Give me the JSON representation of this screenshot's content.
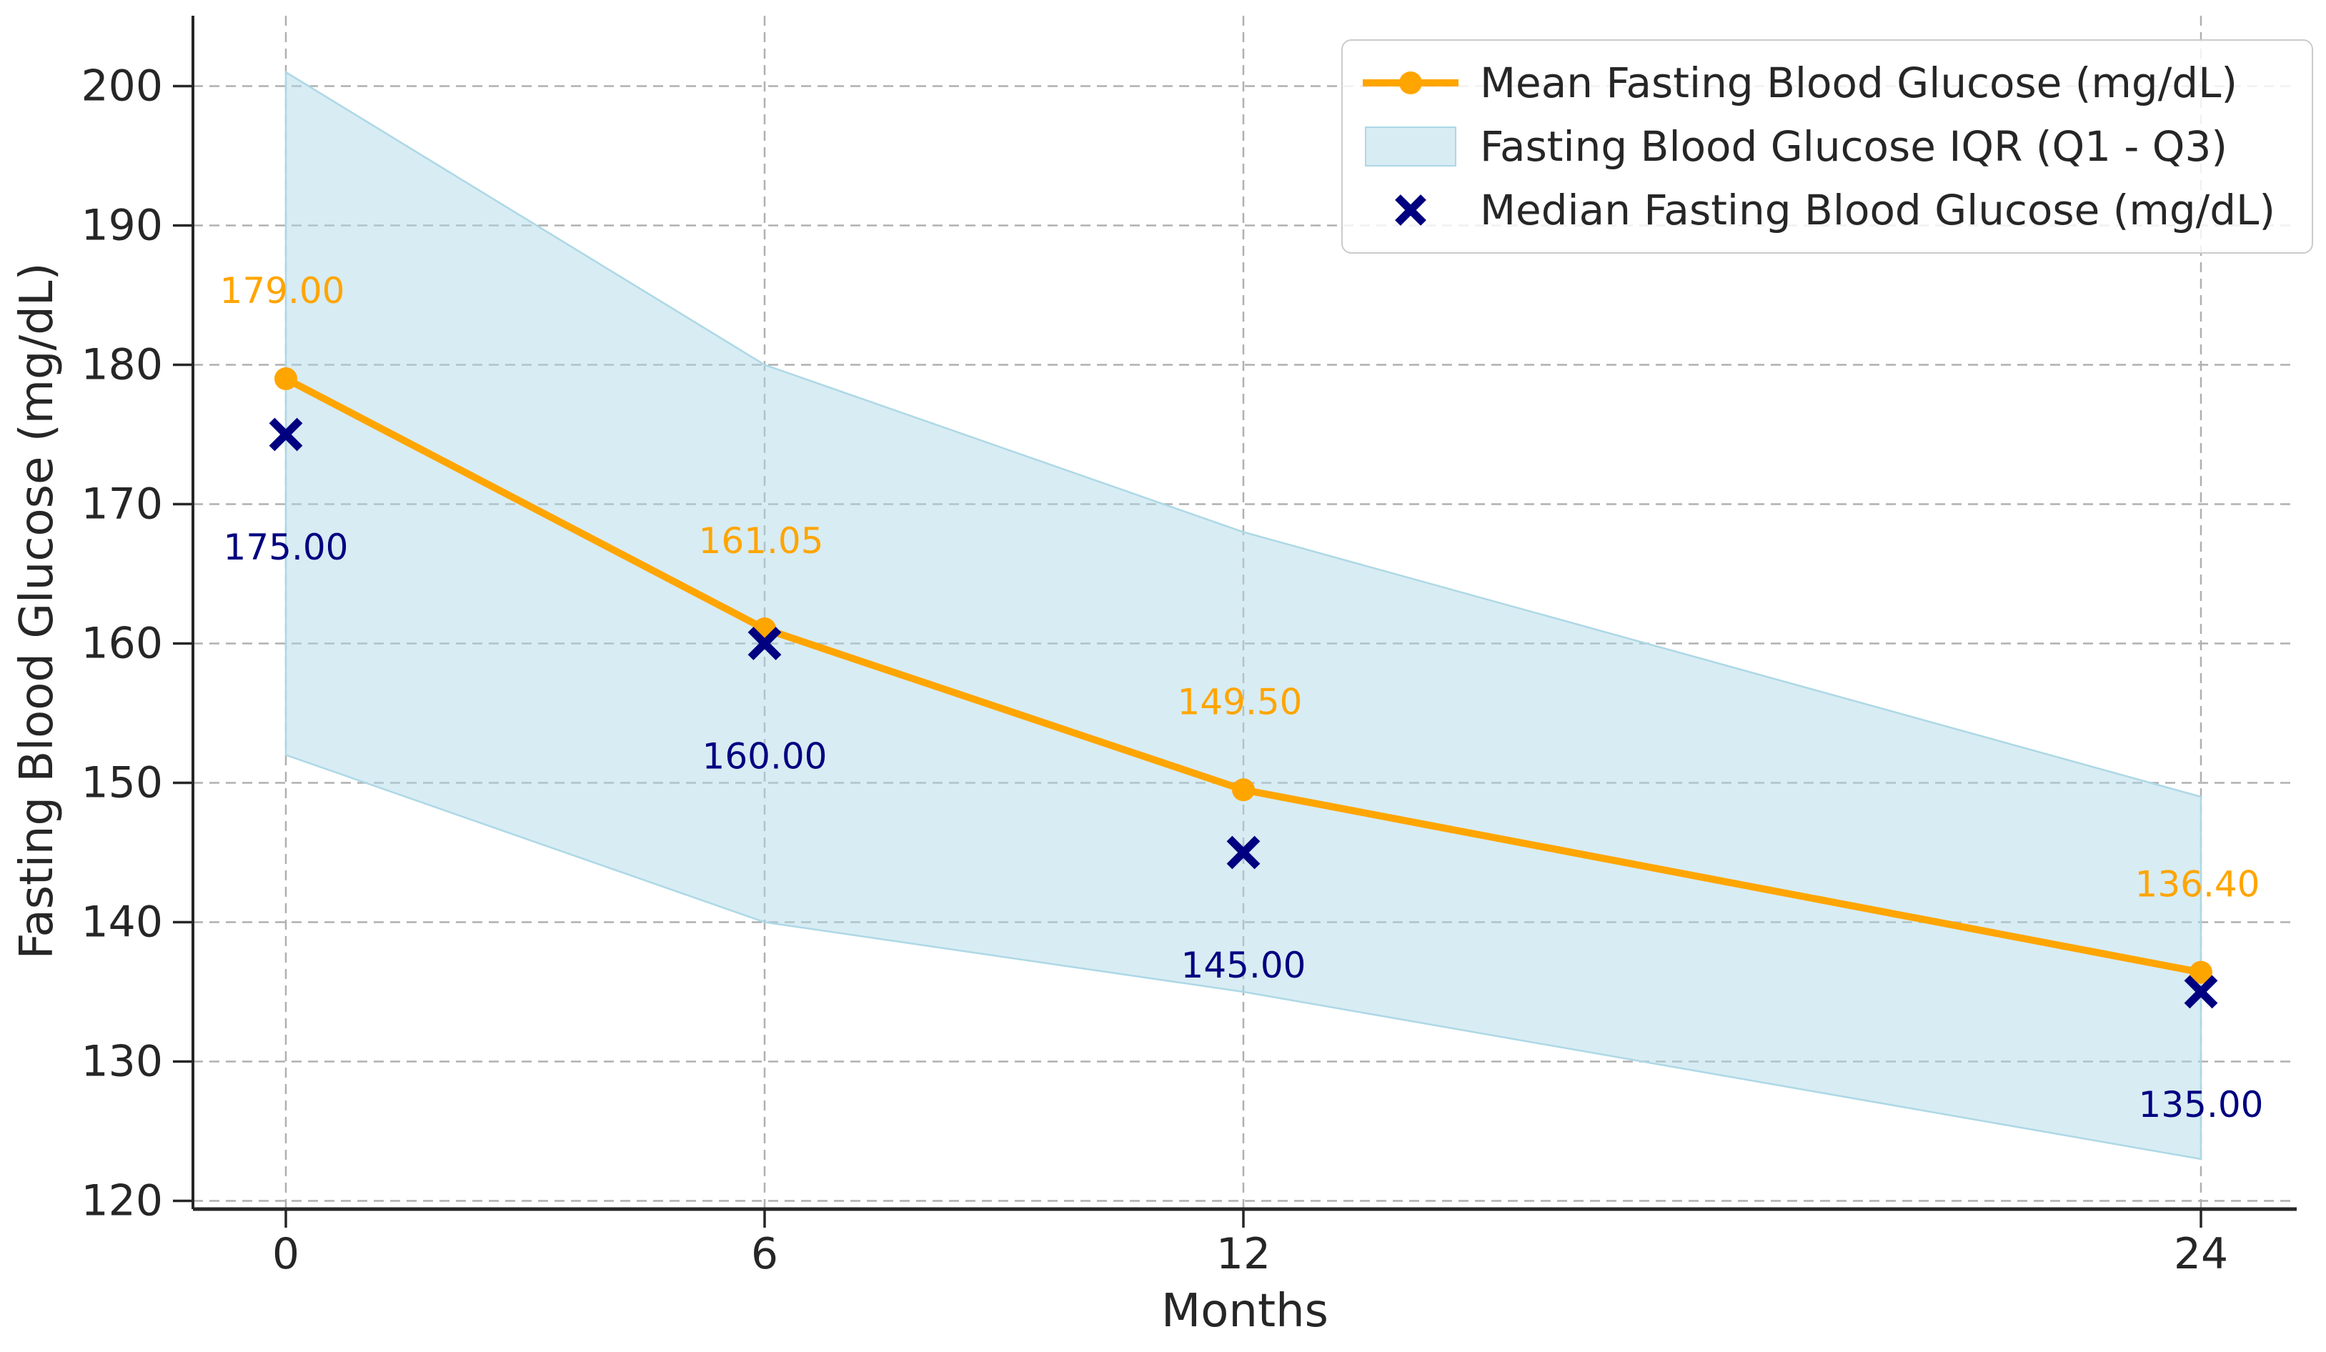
{
  "chart_data": {
    "type": "line",
    "title": "",
    "xlabel": "Months",
    "ylabel": "Fasting Blood Glucose (mg/dL)",
    "x": [
      0,
      6,
      12,
      24
    ],
    "x_tick_labels": [
      "0",
      "6",
      "12",
      "24"
    ],
    "y_ticks": [
      120,
      130,
      140,
      150,
      160,
      170,
      180,
      190,
      200
    ],
    "y_tick_labels": [
      "120",
      "130",
      "140",
      "150",
      "160",
      "170",
      "180",
      "190",
      "200"
    ],
    "xlim": [
      -1.2,
      25.2
    ],
    "ylim": [
      119.4,
      205.1
    ],
    "grid": true,
    "grid_style": "dashed",
    "legend_position": "upper right",
    "colors": {
      "mean": "#FFA500",
      "median": "#000080",
      "iqr_fill": "#ADD8E6",
      "grid": "#B0B0B0",
      "axis": "#262626",
      "annotation_mean": "#FFA500",
      "annotation_median": "#000080"
    },
    "series": [
      {
        "name": "Mean Fasting Blood Glucose (mg/dL)",
        "type": "line",
        "marker": "circle",
        "color_key": "mean",
        "values": [
          179.0,
          161.05,
          149.5,
          136.4
        ],
        "point_labels": [
          "179.00",
          "161.05",
          "149.50",
          "136.40"
        ]
      },
      {
        "name": "Fasting Blood Glucose IQR (Q1 - Q3)",
        "type": "band",
        "color_key": "iqr_fill",
        "upper_q3": [
          201,
          180,
          168,
          149
        ],
        "lower_q1": [
          152,
          140,
          135,
          123
        ]
      },
      {
        "name": "Median Fasting Blood Glucose (mg/dL)",
        "type": "scatter",
        "marker": "x",
        "color_key": "median",
        "values": [
          175.0,
          160.0,
          145.0,
          135.0
        ],
        "point_labels": [
          "175.00",
          "160.00",
          "145.00",
          "135.00"
        ]
      }
    ]
  }
}
